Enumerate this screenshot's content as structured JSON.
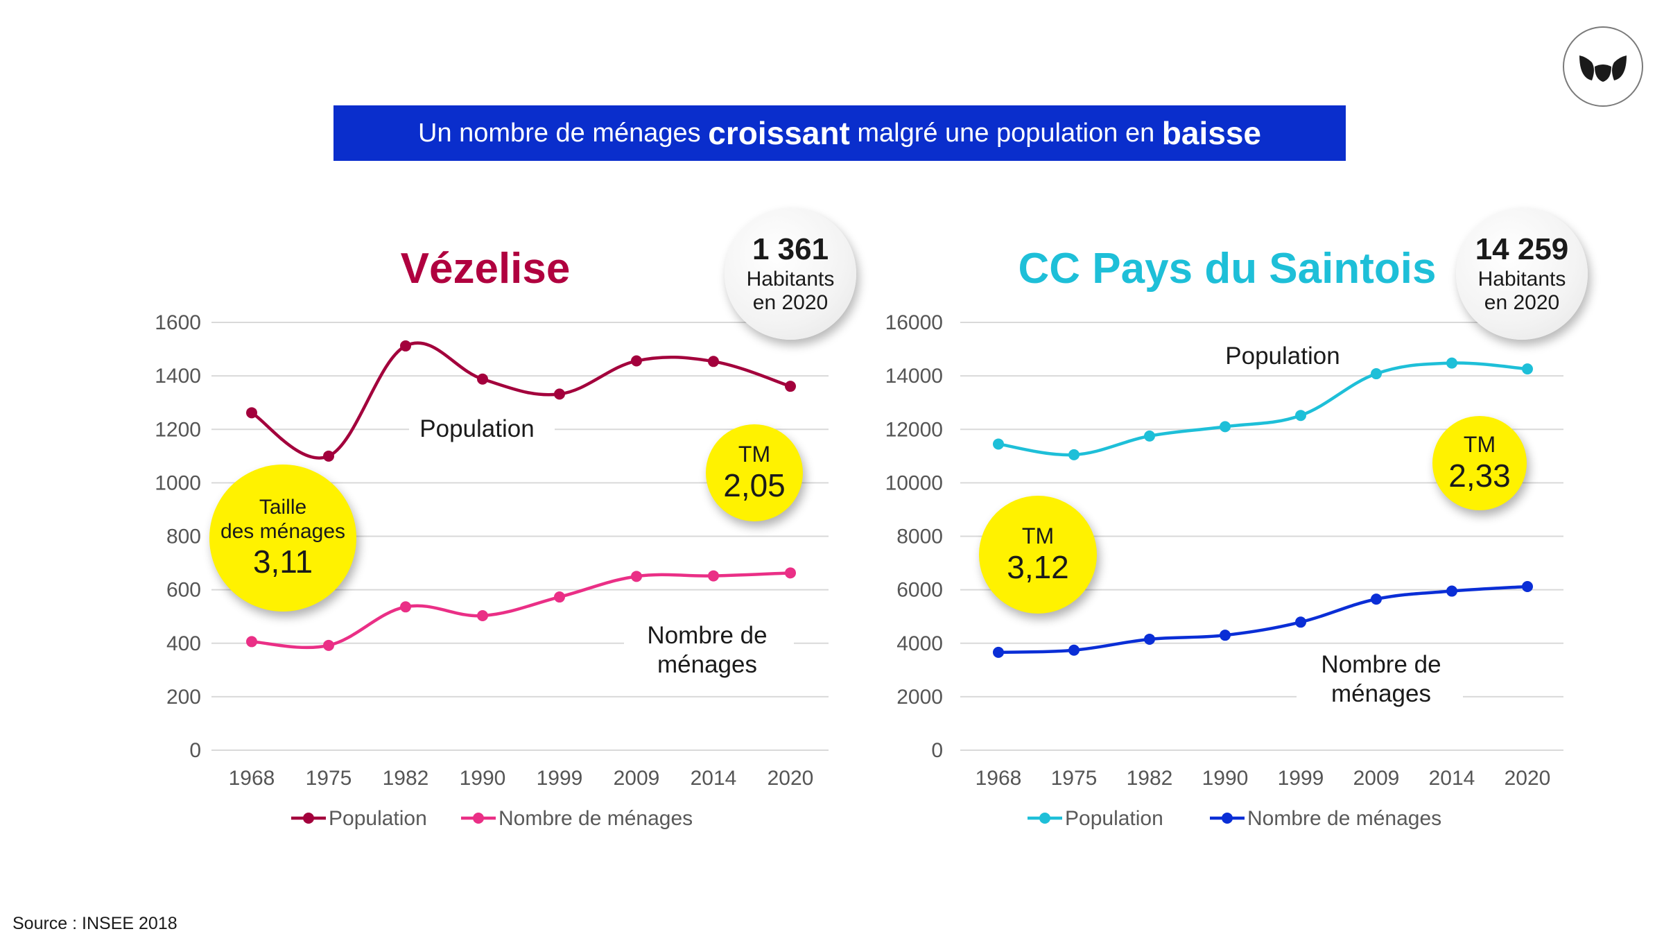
{
  "banner": {
    "part1": "Un nombre de ménages ",
    "bold1": "croissant",
    "part2": " malgré une population en ",
    "bold2": "baisse"
  },
  "source": "Source : INSEE 2018",
  "logo": {
    "icon": "leaf-logo-icon"
  },
  "chart_data": [
    {
      "type": "line",
      "title": "Vézelise",
      "categories": [
        "1968",
        "1975",
        "1982",
        "1990",
        "1999",
        "2009",
        "2014",
        "2020"
      ],
      "ylim": [
        0,
        1600
      ],
      "yticks": [
        0,
        200,
        400,
        600,
        800,
        1000,
        1200,
        1400,
        1600
      ],
      "grid": true,
      "legend_position": "bottom",
      "series": [
        {
          "name": "Population",
          "color": "#a3003c",
          "values": [
            1262,
            1100,
            1512,
            1388,
            1332,
            1456,
            1454,
            1361
          ],
          "label": "Population"
        },
        {
          "name": "Nombre de ménages",
          "color": "#ea2f86",
          "values": [
            406,
            392,
            536,
            503,
            573,
            650,
            652,
            663
          ],
          "label_lines": [
            "Nombre de",
            "ménages"
          ]
        }
      ],
      "bubble": {
        "value": "1 361",
        "line1": "Habitants",
        "line2": "en 2020"
      },
      "tm_start": {
        "line1": "Taille",
        "line2": "des ménages",
        "value": "3,11"
      },
      "tm_end": {
        "line1": "TM",
        "value": "2,05"
      }
    },
    {
      "type": "line",
      "title": "CC Pays du Saintois",
      "categories": [
        "1968",
        "1975",
        "1982",
        "1990",
        "1999",
        "2009",
        "2014",
        "2020"
      ],
      "ylim": [
        0,
        16000
      ],
      "yticks": [
        0,
        2000,
        4000,
        6000,
        8000,
        10000,
        12000,
        14000,
        16000
      ],
      "grid": true,
      "legend_position": "bottom",
      "series": [
        {
          "name": "Population",
          "color": "#1ebfd8",
          "values": [
            11450,
            11050,
            11750,
            12100,
            12520,
            14080,
            14480,
            14259
          ],
          "label": "Population"
        },
        {
          "name": "Nombre de ménages",
          "color": "#0a2ed6",
          "values": [
            3660,
            3740,
            4150,
            4300,
            4790,
            5650,
            5950,
            6120
          ],
          "label_lines": [
            "Nombre de",
            "ménages"
          ]
        }
      ],
      "bubble": {
        "value": "14 259",
        "line1": "Habitants",
        "line2": "en 2020"
      },
      "tm_start": {
        "line1": "TM",
        "value": "3,12"
      },
      "tm_end": {
        "line1": "TM",
        "value": "2,33"
      }
    }
  ]
}
